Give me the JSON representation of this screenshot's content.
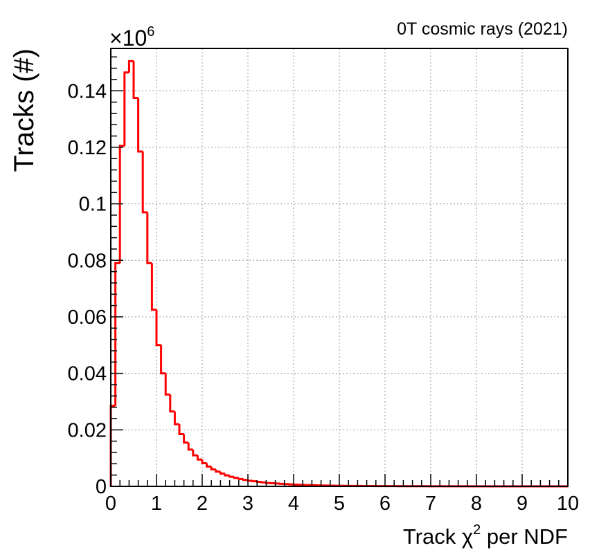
{
  "chart_data": {
    "type": "bar",
    "title": "0T cosmic rays (2021)",
    "xlabel": "Track χ² per NDF",
    "xlabel_parts": {
      "pre": "Track χ",
      "sup": "2",
      "post": " per NDF"
    },
    "ylabel": "Tracks (#)",
    "y_multiplier": "×10⁶",
    "y_multiplier_parts": {
      "base": "×10",
      "exp": "6"
    },
    "xlim": [
      0,
      10
    ],
    "ylim": [
      0,
      0.155
    ],
    "x_ticks": [
      0,
      1,
      2,
      3,
      4,
      5,
      6,
      7,
      8,
      9,
      10
    ],
    "x_tick_labels": [
      "0",
      "1",
      "2",
      "3",
      "4",
      "5",
      "6",
      "7",
      "8",
      "9",
      "10"
    ],
    "y_ticks": [
      0,
      0.02,
      0.04,
      0.06,
      0.08,
      0.1,
      0.12,
      0.14
    ],
    "y_tick_labels": [
      "0",
      "0.02",
      "0.04",
      "0.06",
      "0.08",
      "0.1",
      "0.12",
      "0.14"
    ],
    "grid": true,
    "line_color": "#ff0000",
    "bin_width": 0.1,
    "bin_edges_start": 0,
    "series": [
      {
        "values": [
          0.0285,
          0.079,
          0.1205,
          0.1465,
          0.1505,
          0.1375,
          0.1185,
          0.097,
          0.079,
          0.0625,
          0.05,
          0.04,
          0.0325,
          0.0265,
          0.022,
          0.0185,
          0.0155,
          0.013,
          0.011,
          0.0095,
          0.0082,
          0.007,
          0.006,
          0.0052,
          0.0045,
          0.0039,
          0.0034,
          0.003,
          0.0026,
          0.0023,
          0.002,
          0.0018,
          0.0016,
          0.0014,
          0.0012,
          0.0011,
          0.001,
          0.0009,
          0.0008,
          0.0007,
          0.0006,
          0.00055,
          0.0005,
          0.00045,
          0.0004,
          0.00035,
          0.0003,
          0.00028,
          0.00025,
          0.00022,
          0.0002,
          0.00018,
          0.00016,
          0.00015,
          0.00014,
          0.00013,
          0.00012,
          0.00011,
          0.0001,
          0.0001,
          9e-05,
          8e-05,
          8e-05,
          7e-05,
          7e-05,
          6e-05,
          6e-05,
          5e-05,
          5e-05,
          5e-05,
          4e-05,
          4e-05,
          4e-05,
          3e-05,
          3e-05,
          3e-05,
          3e-05,
          2e-05,
          2e-05,
          2e-05,
          2e-05,
          2e-05,
          2e-05,
          1e-05,
          1e-05,
          1e-05,
          1e-05,
          1e-05,
          1e-05,
          1e-05,
          1e-05,
          1e-05,
          1e-05,
          1e-05,
          1e-05,
          1e-05,
          1e-05,
          1e-05,
          1e-05,
          1e-05
        ]
      }
    ]
  }
}
